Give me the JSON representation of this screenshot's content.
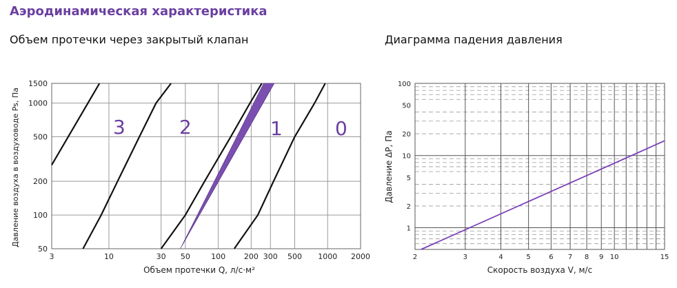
{
  "page": {
    "section_title": "Аэродинамическая характеристика",
    "left_title": "Объем протечки через закрытый клапан",
    "right_title": "Диаграмма падения давления"
  },
  "colors": {
    "accent": "#6b3fa0",
    "band": "#7b4fb0",
    "line": "#7a3fb8"
  },
  "chart_data": [
    {
      "type": "line",
      "title": "Объем протечки через закрытый клапан",
      "xlabel": "Объем протечки Q, л/с·м²",
      "ylabel": "Давление воздуха в воздуховоде Ps, Па",
      "xscale": "log",
      "yscale": "log",
      "xlim": [
        3,
        2000
      ],
      "ylim": [
        50,
        1500
      ],
      "xticks": [
        3,
        10,
        30,
        50,
        100,
        200,
        300,
        500,
        1000,
        2000
      ],
      "yticks": [
        50,
        100,
        200,
        500,
        1000,
        1500
      ],
      "grid": true,
      "series": [
        {
          "name": "3",
          "points": [
            [
              3.0,
              280
            ],
            [
              8.2,
              1500
            ]
          ]
        },
        {
          "name": "2",
          "points": [
            [
              5.8,
              50
            ],
            [
              8.5,
              100
            ],
            [
              12.0,
              200
            ],
            [
              19.0,
              500
            ],
            [
              27.0,
              1000
            ],
            [
              37.0,
              1500
            ]
          ]
        },
        {
          "name": "1",
          "points": [
            [
              30.0,
              50
            ],
            [
              50.0,
              100
            ],
            [
              75.0,
              200
            ],
            [
              130.0,
              500
            ],
            [
              195.0,
              1000
            ],
            [
              250.0,
              1500
            ]
          ]
        },
        {
          "name": "0",
          "points": [
            [
              140.0,
              50
            ],
            [
              230.0,
              100
            ],
            [
              320.0,
              200
            ],
            [
              500.0,
              500
            ],
            [
              760.0,
              1000
            ],
            [
              950.0,
              1500
            ]
          ]
        }
      ],
      "band": {
        "points_low": [
          [
            45,
            50
          ],
          [
            260,
            1500
          ]
        ],
        "points_high": [
          [
            45,
            50
          ],
          [
            325,
            1500
          ]
        ]
      },
      "labels": [
        "3",
        "2",
        "1",
        "0"
      ]
    },
    {
      "type": "line",
      "title": "Диаграмма падения давления",
      "xlabel": "Скорость воздуха V, м/с",
      "ylabel": "Давление ΔP, Па",
      "xscale": "log",
      "yscale": "log",
      "xlim": [
        2,
        15
      ],
      "ylim": [
        0.5,
        100
      ],
      "xticks": [
        2,
        3,
        4,
        5,
        6,
        7,
        8,
        9,
        10,
        15
      ],
      "yticks": [
        1,
        2,
        5,
        10,
        20,
        50,
        100
      ],
      "grid": true,
      "series": [
        {
          "points": [
            [
              2.1,
              0.5
            ],
            [
              15,
              16
            ]
          ]
        }
      ]
    }
  ]
}
